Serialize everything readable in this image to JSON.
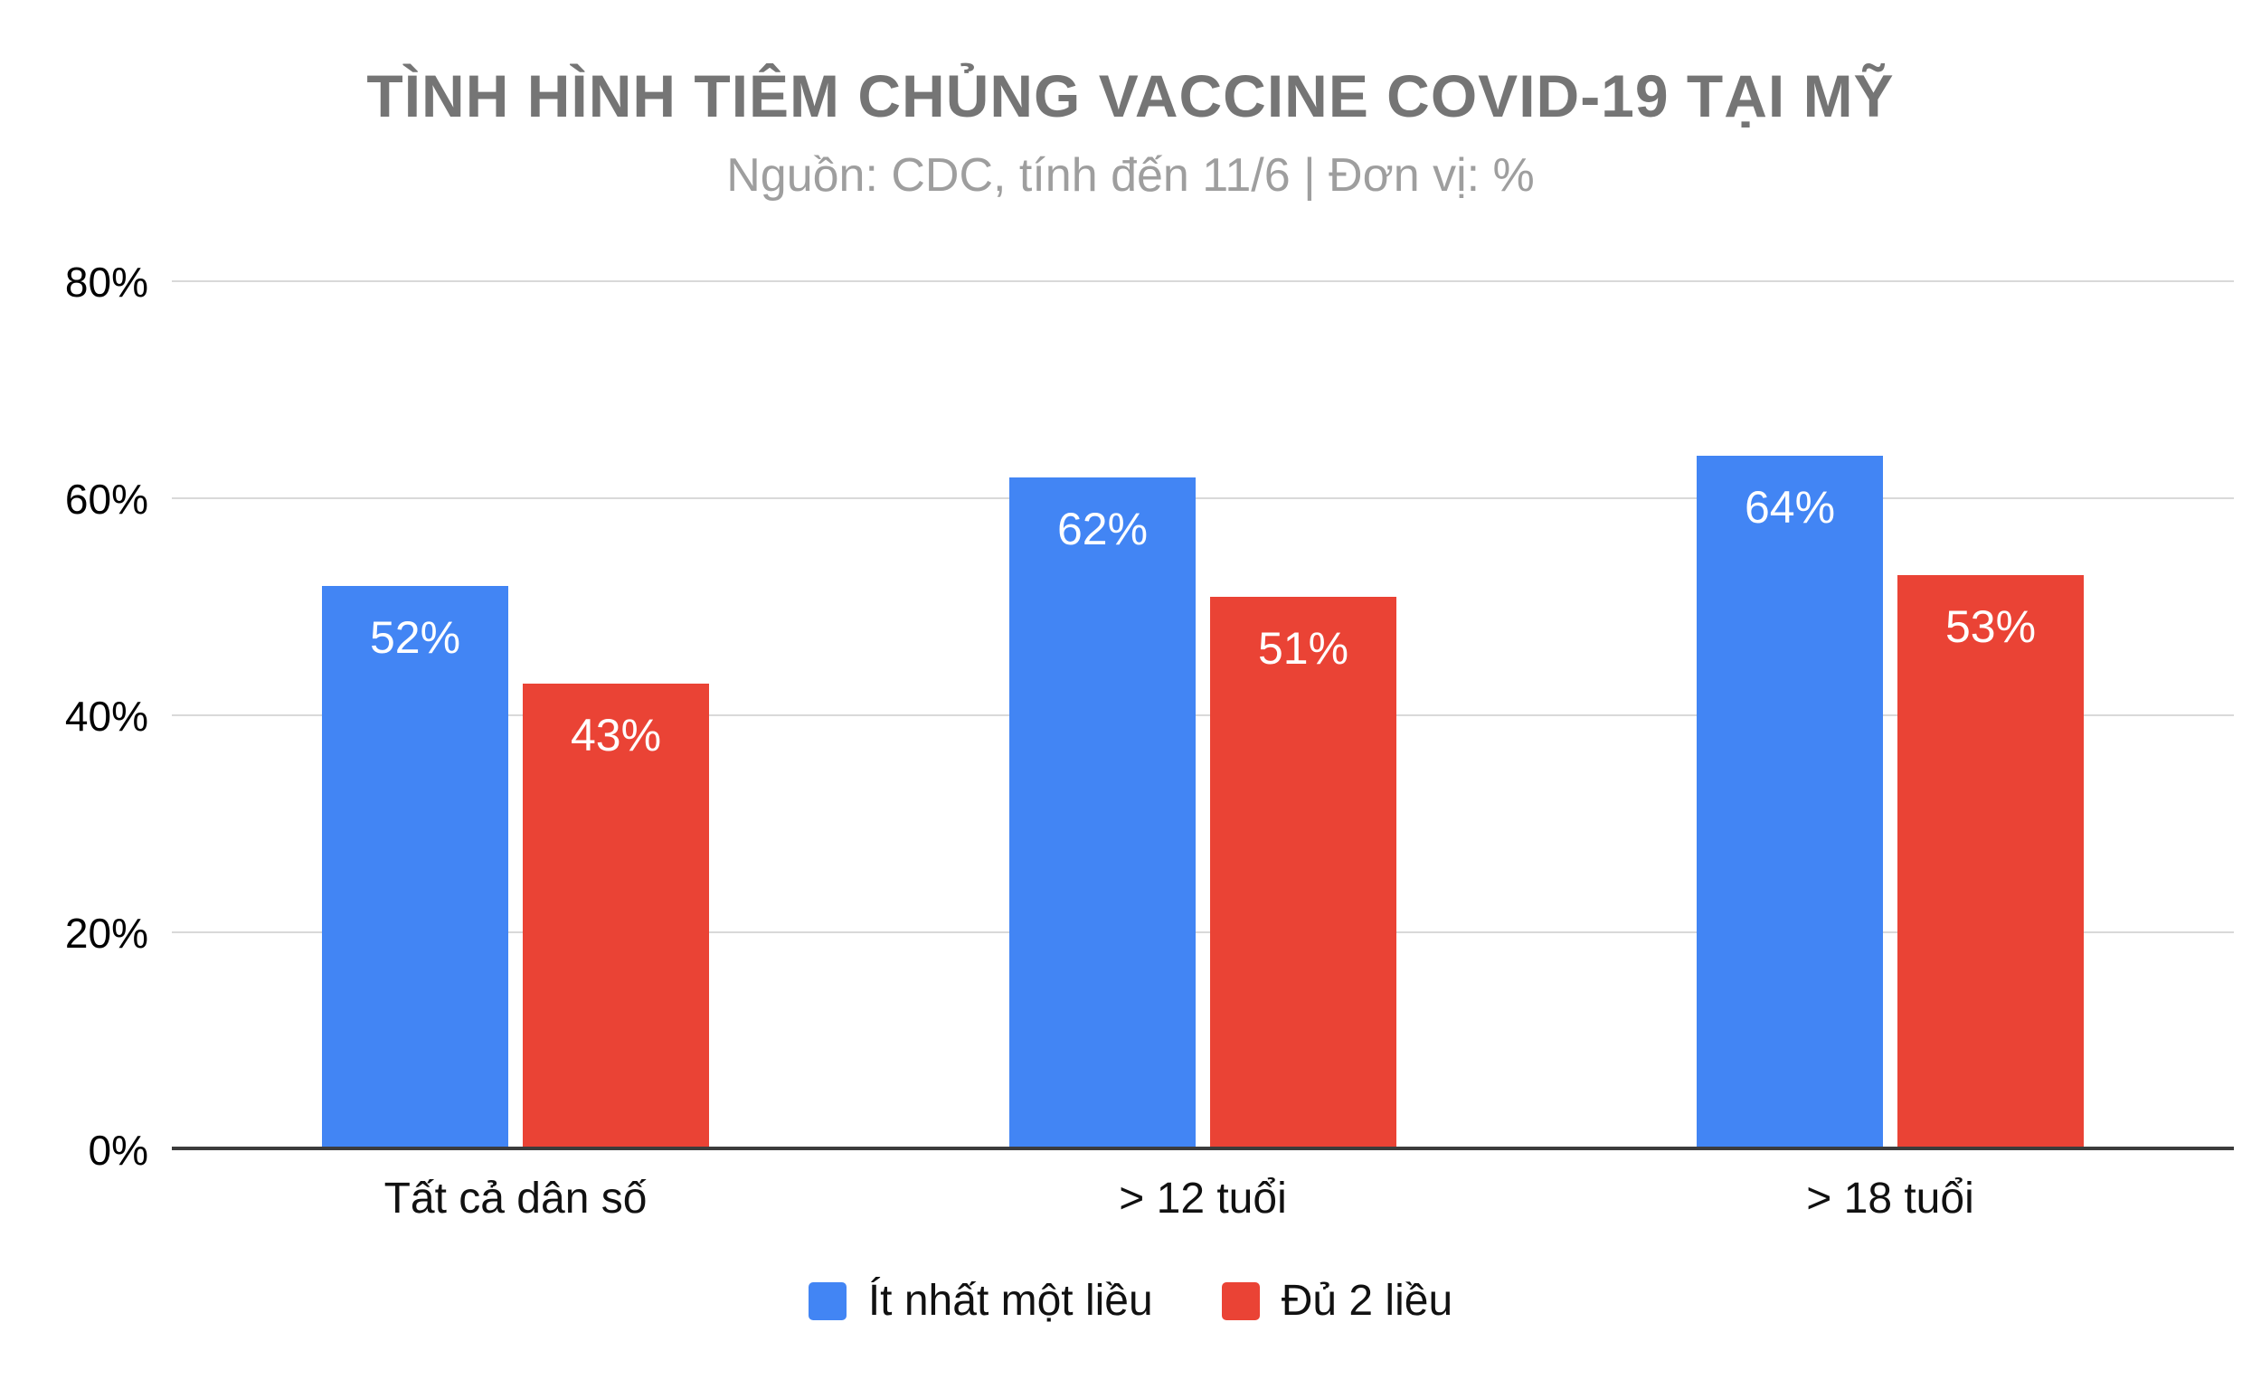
{
  "header": {
    "title": "TÌNH HÌNH TIÊM CHỦNG VACCINE COVID-19 TẠI MỸ",
    "subtitle": "Nguồn: CDC, tính đến 11/6 | Đơn vị: %"
  },
  "chart_data": {
    "type": "bar",
    "title": "TÌNH HÌNH TIÊM CHỦNG VACCINE COVID-19 TẠI MỸ",
    "subtitle": "Nguồn: CDC, tính đến 11/6 | Đơn vị: %",
    "categories": [
      "Tất cả dân số",
      "> 12 tuổi",
      "> 18 tuổi"
    ],
    "series": [
      {
        "name": "Ít nhất một liều",
        "color": "#4285F4",
        "values": [
          52,
          62,
          64
        ],
        "labels": [
          "52%",
          "62%",
          "64%"
        ]
      },
      {
        "name": "Đủ 2 liều",
        "color": "#EA4335",
        "values": [
          43,
          51,
          53
        ],
        "labels": [
          "43%",
          "51%",
          "53%"
        ]
      }
    ],
    "xlabel": "",
    "ylabel": "",
    "ylim": [
      0,
      80
    ],
    "ytick_step": 20,
    "ytick_labels": [
      "0%",
      "20%",
      "40%",
      "60%",
      "80%"
    ],
    "grid": true,
    "legend_position": "bottom"
  },
  "colors": {
    "series_blue": "#4285F4",
    "series_red": "#EA4335",
    "title_gray": "#757575",
    "subtitle_gray": "#9E9E9E",
    "gridline": "#D9D9D9",
    "axis_line": "#3C3C3C",
    "bar_label_text": "#FFFFFF"
  }
}
